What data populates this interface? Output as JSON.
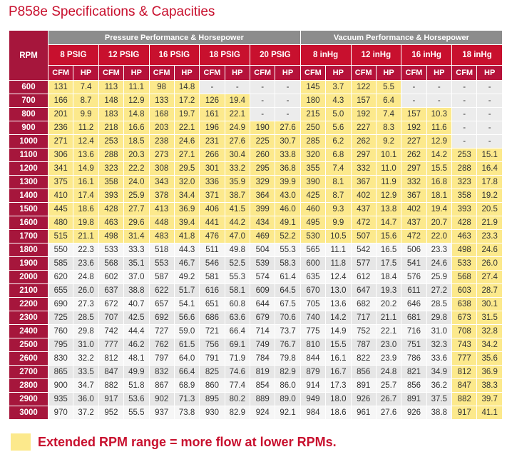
{
  "title": "P858e Specifications & Capacities",
  "header": {
    "rpm": "RPM",
    "groups": [
      {
        "label": "Pressure Performance & Horsepower",
        "columns": [
          "8 PSIG",
          "12 PSIG",
          "16 PSIG",
          "18 PSIG",
          "20 PSIG"
        ]
      },
      {
        "label": "Vacuum Performance & Horsepower",
        "columns": [
          "8 inHg",
          "12 inHg",
          "16 inHg",
          "18 inHg"
        ]
      }
    ],
    "units": [
      "CFM",
      "HP"
    ]
  },
  "table": {
    "rows": [
      {
        "rpm": "600",
        "values": [
          "131",
          "7.4",
          "113",
          "11.1",
          "98",
          "14.8",
          "-",
          "-",
          "-",
          "-",
          "145",
          "3.7",
          "122",
          "5.5",
          "-",
          "-",
          "-",
          "-"
        ]
      },
      {
        "rpm": "700",
        "values": [
          "166",
          "8.7",
          "148",
          "12.9",
          "133",
          "17.2",
          "126",
          "19.4",
          "-",
          "-",
          "180",
          "4.3",
          "157",
          "6.4",
          "-",
          "-",
          "-",
          "-"
        ]
      },
      {
        "rpm": "800",
        "values": [
          "201",
          "9.9",
          "183",
          "14.8",
          "168",
          "19.7",
          "161",
          "22.1",
          "-",
          "-",
          "215",
          "5.0",
          "192",
          "7.4",
          "157",
          "10.3",
          "-",
          "-"
        ]
      },
      {
        "rpm": "900",
        "values": [
          "236",
          "11.2",
          "218",
          "16.6",
          "203",
          "22.1",
          "196",
          "24.9",
          "190",
          "27.6",
          "250",
          "5.6",
          "227",
          "8.3",
          "192",
          "11.6",
          "-",
          "-"
        ]
      },
      {
        "rpm": "1000",
        "values": [
          "271",
          "12.4",
          "253",
          "18.5",
          "238",
          "24.6",
          "231",
          "27.6",
          "225",
          "30.7",
          "285",
          "6.2",
          "262",
          "9.2",
          "227",
          "12.9",
          "-",
          "-"
        ]
      },
      {
        "rpm": "1100",
        "values": [
          "306",
          "13.6",
          "288",
          "20.3",
          "273",
          "27.1",
          "266",
          "30.4",
          "260",
          "33.8",
          "320",
          "6.8",
          "297",
          "10.1",
          "262",
          "14.2",
          "253",
          "15.1"
        ]
      },
      {
        "rpm": "1200",
        "values": [
          "341",
          "14.9",
          "323",
          "22.2",
          "308",
          "29.5",
          "301",
          "33.2",
          "295",
          "36.8",
          "355",
          "7.4",
          "332",
          "11.0",
          "297",
          "15.5",
          "288",
          "16.4"
        ]
      },
      {
        "rpm": "1300",
        "values": [
          "375",
          "16.1",
          "358",
          "24.0",
          "343",
          "32.0",
          "336",
          "35.9",
          "329",
          "39.9",
          "390",
          "8.1",
          "367",
          "11.9",
          "332",
          "16.8",
          "323",
          "17.8"
        ]
      },
      {
        "rpm": "1400",
        "values": [
          "410",
          "17.4",
          "393",
          "25.9",
          "378",
          "34.4",
          "371",
          "38.7",
          "364",
          "43.0",
          "425",
          "8.7",
          "402",
          "12.9",
          "367",
          "18.1",
          "358",
          "19.2"
        ]
      },
      {
        "rpm": "1500",
        "values": [
          "445",
          "18.6",
          "428",
          "27.7",
          "413",
          "36.9",
          "406",
          "41.5",
          "399",
          "46.0",
          "460",
          "9.3",
          "437",
          "13.8",
          "402",
          "19.4",
          "393",
          "20.5"
        ]
      },
      {
        "rpm": "1600",
        "values": [
          "480",
          "19.8",
          "463",
          "29.6",
          "448",
          "39.4",
          "441",
          "44.2",
          "434",
          "49.1",
          "495",
          "9.9",
          "472",
          "14.7",
          "437",
          "20.7",
          "428",
          "21.9"
        ]
      },
      {
        "rpm": "1700",
        "values": [
          "515",
          "21.1",
          "498",
          "31.4",
          "483",
          "41.8",
          "476",
          "47.0",
          "469",
          "52.2",
          "530",
          "10.5",
          "507",
          "15.6",
          "472",
          "22.0",
          "463",
          "23.3"
        ]
      },
      {
        "rpm": "1800",
        "values": [
          "550",
          "22.3",
          "533",
          "33.3",
          "518",
          "44.3",
          "511",
          "49.8",
          "504",
          "55.3",
          "565",
          "11.1",
          "542",
          "16.5",
          "506",
          "23.3",
          "498",
          "24.6"
        ]
      },
      {
        "rpm": "1900",
        "values": [
          "585",
          "23.6",
          "568",
          "35.1",
          "553",
          "46.7",
          "546",
          "52.5",
          "539",
          "58.3",
          "600",
          "11.8",
          "577",
          "17.5",
          "541",
          "24.6",
          "533",
          "26.0"
        ]
      },
      {
        "rpm": "2000",
        "values": [
          "620",
          "24.8",
          "602",
          "37.0",
          "587",
          "49.2",
          "581",
          "55.3",
          "574",
          "61.4",
          "635",
          "12.4",
          "612",
          "18.4",
          "576",
          "25.9",
          "568",
          "27.4"
        ]
      },
      {
        "rpm": "2100",
        "values": [
          "655",
          "26.0",
          "637",
          "38.8",
          "622",
          "51.7",
          "616",
          "58.1",
          "609",
          "64.5",
          "670",
          "13.0",
          "647",
          "19.3",
          "611",
          "27.2",
          "603",
          "28.7"
        ]
      },
      {
        "rpm": "2200",
        "values": [
          "690",
          "27.3",
          "672",
          "40.7",
          "657",
          "54.1",
          "651",
          "60.8",
          "644",
          "67.5",
          "705",
          "13.6",
          "682",
          "20.2",
          "646",
          "28.5",
          "638",
          "30.1"
        ]
      },
      {
        "rpm": "2300",
        "values": [
          "725",
          "28.5",
          "707",
          "42.5",
          "692",
          "56.6",
          "686",
          "63.6",
          "679",
          "70.6",
          "740",
          "14.2",
          "717",
          "21.1",
          "681",
          "29.8",
          "673",
          "31.5"
        ]
      },
      {
        "rpm": "2400",
        "values": [
          "760",
          "29.8",
          "742",
          "44.4",
          "727",
          "59.0",
          "721",
          "66.4",
          "714",
          "73.7",
          "775",
          "14.9",
          "752",
          "22.1",
          "716",
          "31.0",
          "708",
          "32.8"
        ]
      },
      {
        "rpm": "2500",
        "values": [
          "795",
          "31.0",
          "777",
          "46.2",
          "762",
          "61.5",
          "756",
          "69.1",
          "749",
          "76.7",
          "810",
          "15.5",
          "787",
          "23.0",
          "751",
          "32.3",
          "743",
          "34.2"
        ]
      },
      {
        "rpm": "2600",
        "values": [
          "830",
          "32.2",
          "812",
          "48.1",
          "797",
          "64.0",
          "791",
          "71.9",
          "784",
          "79.8",
          "844",
          "16.1",
          "822",
          "23.9",
          "786",
          "33.6",
          "777",
          "35.6"
        ]
      },
      {
        "rpm": "2700",
        "values": [
          "865",
          "33.5",
          "847",
          "49.9",
          "832",
          "66.4",
          "825",
          "74.6",
          "819",
          "82.9",
          "879",
          "16.7",
          "856",
          "24.8",
          "821",
          "34.9",
          "812",
          "36.9"
        ]
      },
      {
        "rpm": "2800",
        "values": [
          "900",
          "34.7",
          "882",
          "51.8",
          "867",
          "68.9",
          "860",
          "77.4",
          "854",
          "86.0",
          "914",
          "17.3",
          "891",
          "25.7",
          "856",
          "36.2",
          "847",
          "38.3"
        ]
      },
      {
        "rpm": "2900",
        "values": [
          "935",
          "36.0",
          "917",
          "53.6",
          "902",
          "71.3",
          "895",
          "80.2",
          "889",
          "89.0",
          "949",
          "18.0",
          "926",
          "26.7",
          "891",
          "37.5",
          "882",
          "39.7"
        ]
      },
      {
        "rpm": "3000",
        "values": [
          "970",
          "37.2",
          "952",
          "55.5",
          "937",
          "73.8",
          "930",
          "82.9",
          "924",
          "92.1",
          "984",
          "18.6",
          "961",
          "27.6",
          "926",
          "38.8",
          "917",
          "41.1"
        ]
      }
    ]
  },
  "legend": "Extended RPM range = more flow at lower RPMs."
}
